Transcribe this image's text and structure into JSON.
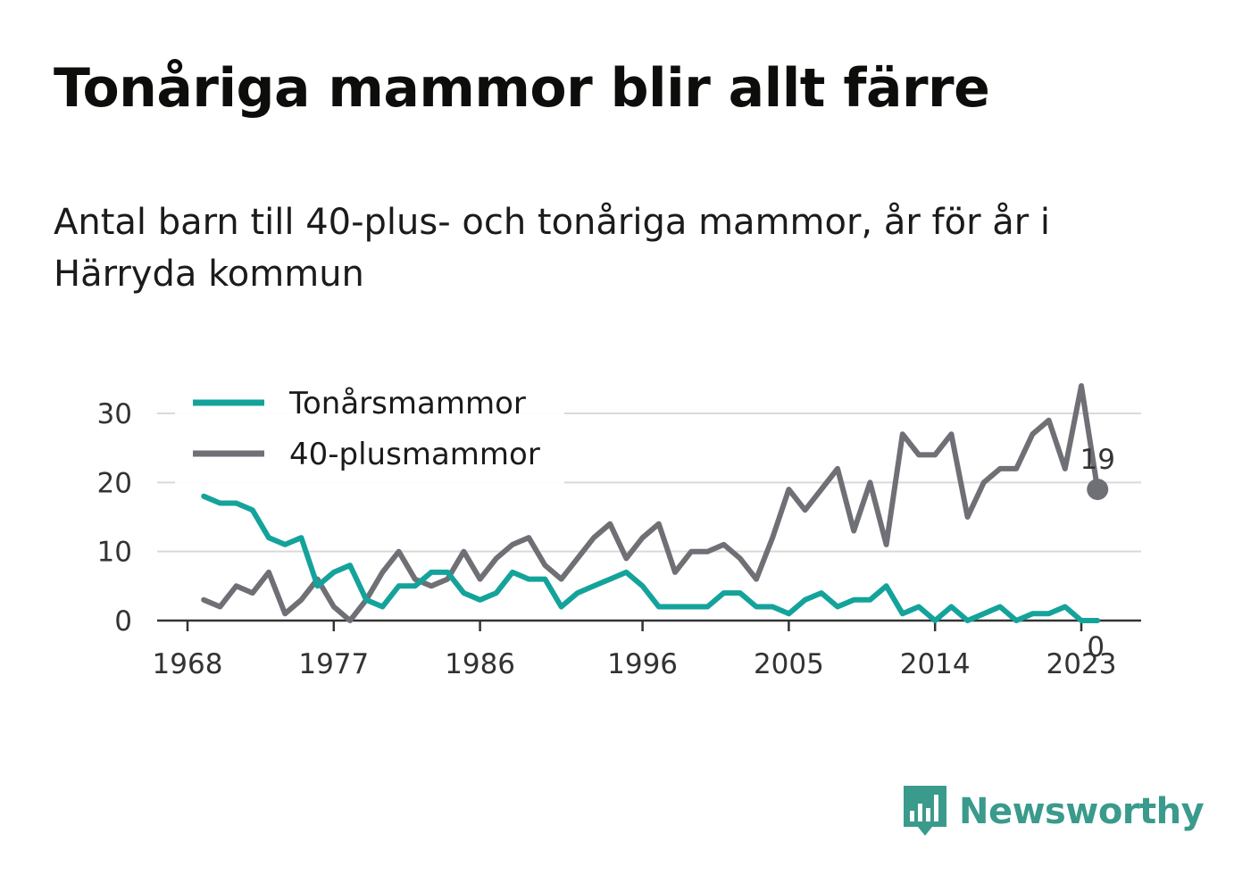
{
  "header": {
    "title": "Tonåriga mammor blir allt färre",
    "subtitle": "Antal barn till 40-plus- och tonåriga mammor, år för år i Härryda kommun"
  },
  "brand": {
    "name": "Newsworthy",
    "color": "#3a9a8c"
  },
  "chart_data": {
    "type": "line",
    "x": [
      1969,
      1970,
      1971,
      1972,
      1973,
      1974,
      1975,
      1976,
      1977,
      1978,
      1979,
      1980,
      1981,
      1982,
      1983,
      1984,
      1985,
      1986,
      1987,
      1988,
      1989,
      1990,
      1991,
      1992,
      1993,
      1994,
      1995,
      1996,
      1997,
      1998,
      1999,
      2000,
      2001,
      2002,
      2003,
      2004,
      2005,
      2006,
      2007,
      2008,
      2009,
      2010,
      2011,
      2012,
      2013,
      2014,
      2015,
      2016,
      2017,
      2018,
      2019,
      2020,
      2021,
      2022,
      2023,
      2024
    ],
    "series": [
      {
        "name": "Tonårsmammor",
        "color": "#14a39a",
        "values": [
          18,
          17,
          17,
          16,
          12,
          11,
          12,
          5,
          7,
          8,
          3,
          2,
          5,
          5,
          7,
          7,
          4,
          3,
          4,
          7,
          6,
          6,
          2,
          4,
          5,
          6,
          7,
          5,
          2,
          2,
          2,
          2,
          4,
          4,
          2,
          2,
          1,
          3,
          4,
          2,
          3,
          3,
          5,
          1,
          2,
          0,
          2,
          0,
          1,
          2,
          0,
          1,
          1,
          2,
          0,
          0
        ]
      },
      {
        "name": "40-plusmammor",
        "color": "#6f6f76",
        "values": [
          3,
          2,
          5,
          4,
          7,
          1,
          3,
          6,
          2,
          0,
          3,
          7,
          10,
          6,
          5,
          6,
          10,
          6,
          9,
          11,
          12,
          8,
          6,
          9,
          12,
          14,
          9,
          12,
          14,
          7,
          10,
          10,
          11,
          9,
          6,
          12,
          19,
          16,
          19,
          22,
          13,
          20,
          11,
          27,
          24,
          24,
          27,
          15,
          20,
          22,
          22,
          27,
          29,
          22,
          34,
          19
        ]
      }
    ],
    "end_labels": [
      "19",
      "0"
    ],
    "x_ticks": [
      "1968",
      "1977",
      "1986",
      "1996",
      "2005",
      "2014",
      "2023"
    ],
    "y_ticks": [
      "0",
      "10",
      "20",
      "30"
    ],
    "xlim": [
      1968,
      2027
    ],
    "ylim": [
      0,
      35
    ],
    "grid": true,
    "legend": "top-left"
  }
}
